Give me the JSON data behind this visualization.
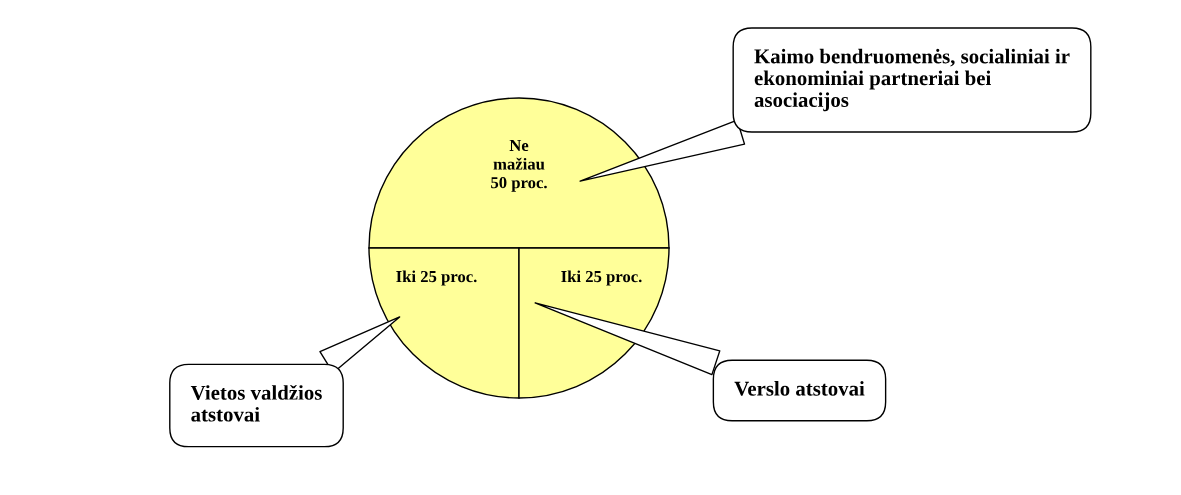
{
  "chart_data": {
    "type": "pie",
    "categories": [
      "Kaimo bendruomenės, socialiniai ir\nekonominiai partneriai bei\nasociacijos",
      "Vietos valdžios\natstovai",
      "Verslo atstovai"
    ],
    "values": [
      50,
      25,
      25
    ],
    "value_labels": [
      "Ne\nmažiau\n50 proc.",
      "Iki 25 proc.",
      "Iki 25 proc."
    ],
    "colors": [
      "#ffff99",
      "#ffff99",
      "#ffff99"
    ],
    "legend": false
  }
}
